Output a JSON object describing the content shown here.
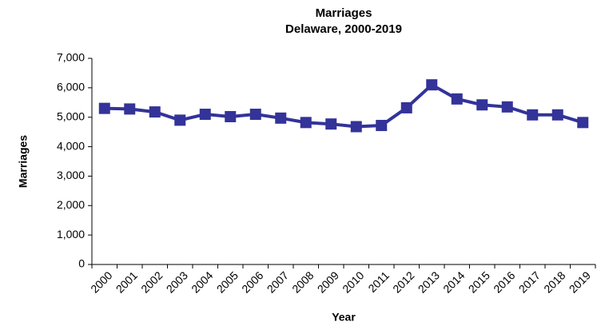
{
  "chart_data": {
    "type": "line",
    "title": "Marriages",
    "subtitle": "Delaware, 2000-2019",
    "x_label": "Year",
    "y_label": "Marriages",
    "categories": [
      "2000",
      "2001",
      "2002",
      "2003",
      "2004",
      "2005",
      "2006",
      "2007",
      "2008",
      "2009",
      "2010",
      "2011",
      "2012",
      "2013",
      "2014",
      "2015",
      "2016",
      "2017",
      "2018",
      "2019"
    ],
    "series": [
      {
        "name": "Marriages",
        "color": "#333399",
        "values": [
          5300,
          5280,
          5180,
          4900,
          5100,
          5020,
          5100,
          4970,
          4820,
          4770,
          4680,
          4720,
          5320,
          6100,
          5620,
          5420,
          5350,
          5080,
          5080,
          4820
        ]
      }
    ],
    "ylim": [
      0,
      7000
    ],
    "yticks": [
      0,
      {
        "value": 1000,
        "label": "1,000"
      },
      {
        "value": 2000,
        "label": "2,000"
      },
      {
        "value": 3000,
        "label": "3,000"
      },
      {
        "value": 4000,
        "label": "4,000"
      },
      {
        "value": 5000,
        "label": "5,000"
      },
      {
        "value": 6000,
        "label": "6,000"
      },
      {
        "value": 7000,
        "label": "7,000"
      }
    ],
    "grid": false
  }
}
